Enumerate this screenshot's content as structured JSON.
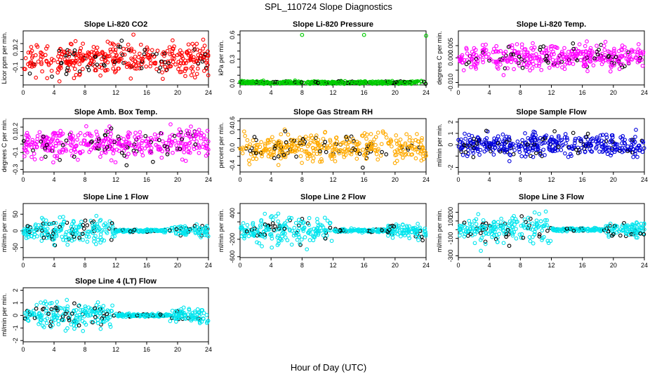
{
  "title": "SPL_110724  Slope Diagnostics",
  "xlabel": "Hour of Day (UTC)",
  "chart_data": [
    {
      "type": "scatter",
      "title": "Slope Li-820 CO2",
      "ylabel": "Licor ppm per min.",
      "color": "#ff0000",
      "spread": 0.15,
      "center": 0.0,
      "outliers": [],
      "xlim": [
        0,
        24
      ],
      "xticks": [
        0,
        4,
        8,
        12,
        16,
        20,
        24
      ],
      "ylim": [
        -0.32,
        0.36
      ],
      "yticks": [
        -0.2,
        -0.1,
        0.0,
        0.1,
        0.2
      ],
      "yticklabels": [
        "",
        "-0.1",
        "",
        "0.1",
        "0.2"
      ],
      "seed": 11
    },
    {
      "type": "scatter",
      "title": "Slope Li-820 Pressure",
      "ylabel": "kPa per min.",
      "color": "#00cc00",
      "spread": 0.012,
      "center": 0.01,
      "outliers": [
        [
          8,
          0.6
        ],
        [
          16,
          0.6
        ],
        [
          24,
          0.59
        ]
      ],
      "xlim": [
        0,
        24
      ],
      "xticks": [
        0,
        4,
        8,
        12,
        16,
        20,
        24
      ],
      "ylim": [
        -0.02,
        0.65
      ],
      "yticks": [
        0.0,
        0.1,
        0.2,
        0.3,
        0.4,
        0.5,
        0.6
      ],
      "yticklabels": [
        "0.0",
        "",
        "",
        "0.3",
        "",
        "",
        "0.6"
      ],
      "seed": 23
    },
    {
      "type": "scatter",
      "title": "Slope Li-820 Temp.",
      "ylabel": "degrees C per min.",
      "color": "#ff00ff",
      "spread": 0.0035,
      "center": 0.0005,
      "outliers": [],
      "xlim": [
        0,
        24
      ],
      "xticks": [
        0,
        4,
        8,
        12,
        16,
        20,
        24
      ],
      "ylim": [
        -0.011,
        0.011
      ],
      "yticks": [
        -0.01,
        -0.005,
        0.0,
        0.005
      ],
      "yticklabels": [
        "-0.010",
        "",
        "0.000",
        "0.005"
      ],
      "seed": 37
    },
    {
      "type": "scatter",
      "title": "Slope Amb. Box Temp.",
      "ylabel": "degrees C per min.",
      "color": "#ff00ff",
      "spread": 0.12,
      "center": 0.0,
      "outliers": [],
      "xlim": [
        0,
        24
      ],
      "xticks": [
        0,
        4,
        8,
        12,
        16,
        20,
        24
      ],
      "ylim": [
        -0.33,
        0.3
      ],
      "yticks": [
        -0.3,
        -0.2,
        -0.1,
        0.0,
        0.1,
        0.2
      ],
      "yticklabels": [
        "-0.3",
        "",
        "-0.1",
        "",
        "0.1",
        "0.2"
      ],
      "seed": 41
    },
    {
      "type": "scatter",
      "title": "Slope Gas Stream RH",
      "ylabel": "percent per min.",
      "color": "#ffaa00",
      "spread": 0.22,
      "center": 0.0,
      "outliers": [],
      "xlim": [
        0,
        24
      ],
      "xticks": [
        0,
        4,
        8,
        12,
        16,
        20,
        24
      ],
      "ylim": [
        -0.55,
        0.65
      ],
      "yticks": [
        -0.4,
        -0.2,
        0.0,
        0.2,
        0.4,
        0.6
      ],
      "yticklabels": [
        "-0.4",
        "",
        "0.0",
        "",
        "0.4",
        "0.6"
      ],
      "seed": 53
    },
    {
      "type": "scatter",
      "title": "Slope Sample Flow",
      "ylabel": "ml/min per min.",
      "color": "#0000dd",
      "spread": 0.7,
      "center": 0.0,
      "outliers": [],
      "xlim": [
        0,
        24
      ],
      "xticks": [
        0,
        4,
        8,
        12,
        16,
        20,
        24
      ],
      "ylim": [
        -2.4,
        2.3
      ],
      "yticks": [
        -2,
        -1,
        0,
        1,
        2
      ],
      "yticklabels": [
        "-2",
        "",
        "0",
        "1",
        "2"
      ],
      "seed": 67
    },
    {
      "type": "scatter",
      "title": "Slope Line 1 Flow",
      "ylabel": "ml/min per min.",
      "color": "#00e5ee",
      "spread": 25,
      "center": 0,
      "outliers": [],
      "xlim": [
        0,
        24
      ],
      "xticks": [
        0,
        4,
        8,
        12,
        16,
        20,
        24
      ],
      "ylim": [
        -80,
        82
      ],
      "yticks": [
        -50,
        0,
        50
      ],
      "yticklabels": [
        "-50",
        "0",
        "50"
      ],
      "seed": 71
    },
    {
      "type": "scatter",
      "title": "Slope Line 2 Flow",
      "ylabel": "ml/min per min.",
      "color": "#00e5ee",
      "spread": 220,
      "center": 0,
      "outliers": [],
      "xlim": [
        0,
        24
      ],
      "xticks": [
        0,
        4,
        8,
        12,
        16,
        20,
        24
      ],
      "ylim": [
        -620,
        620
      ],
      "yticks": [
        -600,
        -200,
        200,
        400
      ],
      "yticklabels": [
        "-600",
        "-200",
        "",
        "400"
      ],
      "seed": 83
    },
    {
      "type": "scatter",
      "title": "Slope Line 3 Flow",
      "ylabel": "ml/min per min.",
      "color": "#00e5ee",
      "spread": 110,
      "center": 0,
      "outliers": [],
      "xlim": [
        0,
        24
      ],
      "xticks": [
        0,
        4,
        8,
        12,
        16,
        20,
        24
      ],
      "ylim": [
        -320,
        300
      ],
      "yticks": [
        -300,
        -100,
        0,
        100,
        200
      ],
      "yticklabels": [
        "-300",
        "-100",
        "",
        "100",
        "200"
      ],
      "seed": 97
    },
    {
      "type": "scatter",
      "title": "Slope Line 4 (LT) Flow",
      "ylabel": "ml/min per min.",
      "color": "#00e5ee",
      "spread": 0.7,
      "center": 0.0,
      "outliers": [],
      "xlim": [
        0,
        24
      ],
      "xticks": [
        0,
        4,
        8,
        12,
        16,
        20,
        24
      ],
      "ylim": [
        -2.1,
        2.2
      ],
      "yticks": [
        -2,
        -1,
        0,
        1,
        2
      ],
      "yticklabels": [
        "-2",
        "-1",
        "0",
        "1",
        "2"
      ],
      "seed": 103
    }
  ]
}
